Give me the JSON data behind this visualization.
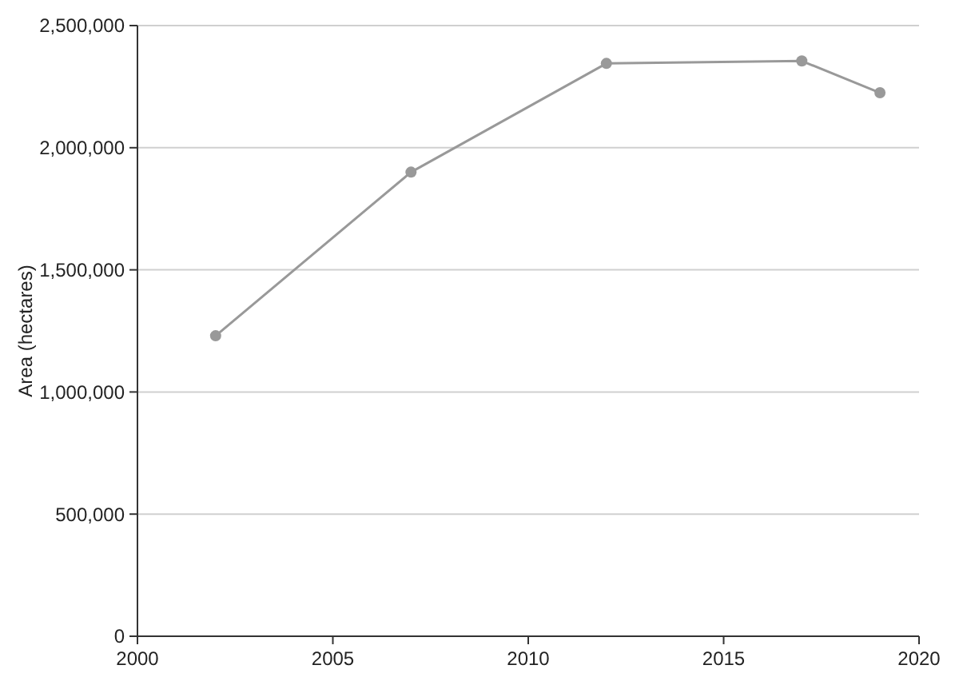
{
  "chart_data": {
    "type": "line",
    "ylabel": "Area (hectares)",
    "x": [
      2002,
      2007,
      2012,
      2017,
      2019
    ],
    "series": [
      {
        "color": "#999999",
        "values": [
          1230000,
          1900000,
          2345000,
          2355000,
          2225000
        ]
      }
    ],
    "xlim": [
      2000,
      2020
    ],
    "xticks": [
      2000,
      2005,
      2010,
      2015,
      2020
    ],
    "ylim": [
      0,
      2500000
    ],
    "yticks": [
      {
        "value": 0,
        "label": "0"
      },
      {
        "value": 500000,
        "label": "500,000"
      },
      {
        "value": 1000000,
        "label": "1,000,000"
      },
      {
        "value": 1500000,
        "label": "1,500,000"
      },
      {
        "value": 2000000,
        "label": "2,000,000"
      },
      {
        "value": 2500000,
        "label": "2,500,000"
      }
    ],
    "grid": "y",
    "marker": "circle",
    "line_style": "solid"
  }
}
